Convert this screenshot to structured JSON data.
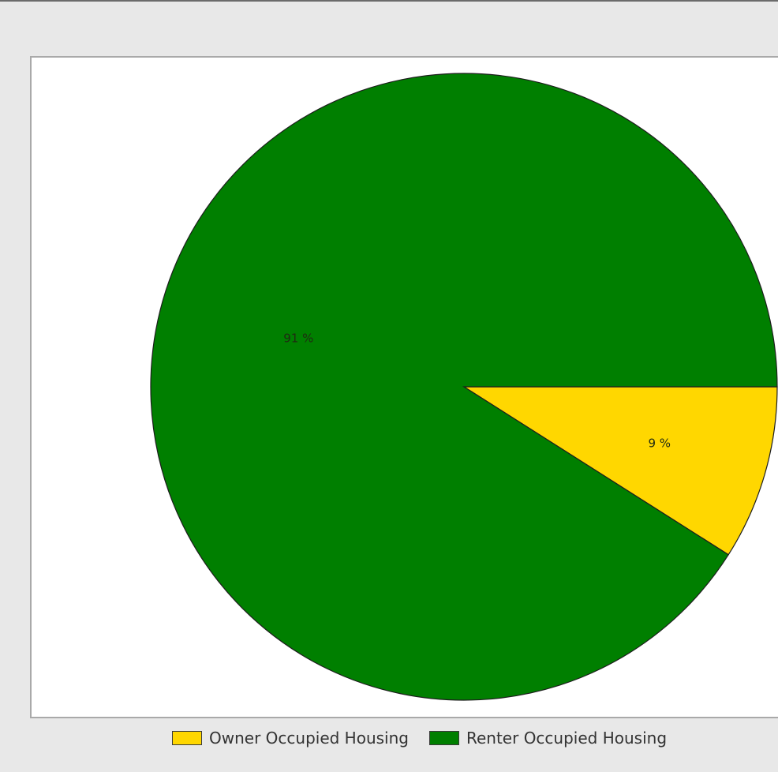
{
  "chart_data": {
    "type": "pie",
    "title": "",
    "slices": [
      {
        "name": "Owner Occupied Housing",
        "value": 9,
        "label": "9 %",
        "color": "#ffd700"
      },
      {
        "name": "Renter Occupied Housing",
        "value": 91,
        "label": "91 %",
        "color": "#007f00"
      }
    ],
    "legend": {
      "position": "bottom",
      "items": [
        "Owner Occupied Housing",
        "Renter Occupied Housing"
      ]
    }
  }
}
